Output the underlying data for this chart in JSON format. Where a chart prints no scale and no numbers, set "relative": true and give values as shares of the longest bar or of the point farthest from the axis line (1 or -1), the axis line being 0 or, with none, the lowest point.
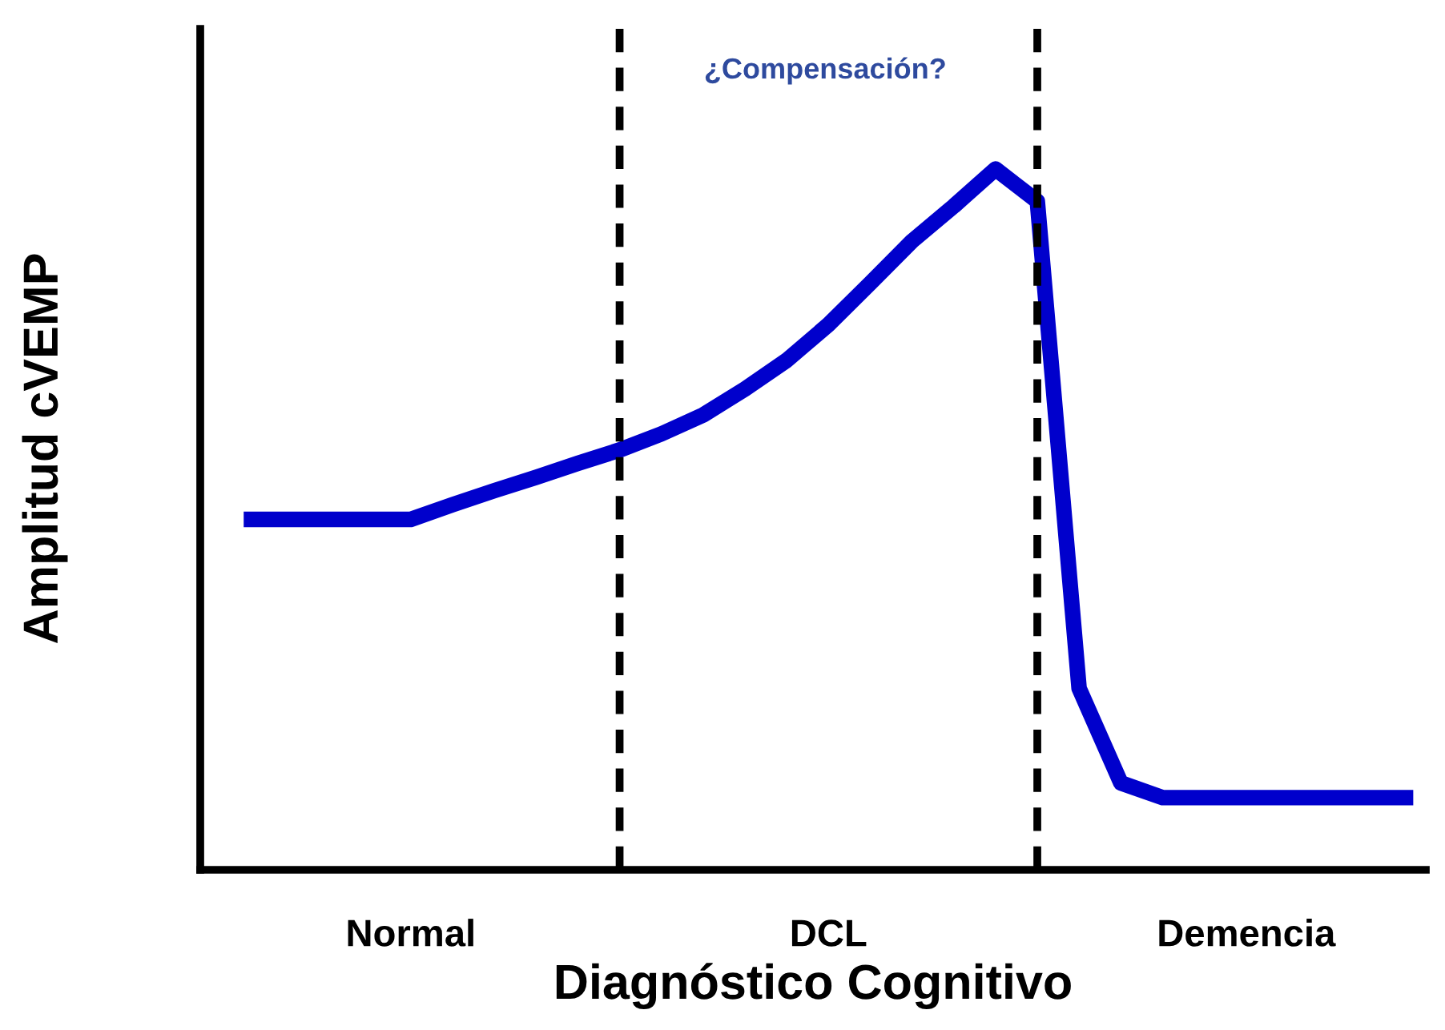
{
  "chart_data": {
    "type": "line",
    "relative": true,
    "xlabel": "Diagnóstico Cognitivo",
    "ylabel": "Amplitud cVEMP",
    "categories": [
      null,
      null,
      null,
      null,
      "Normal",
      null,
      null,
      null,
      null,
      null,
      null,
      null,
      null,
      null,
      "DCL",
      null,
      null,
      null,
      null,
      null,
      null,
      null,
      null,
      null,
      "Demencia",
      null,
      null,
      null,
      null
    ],
    "series": [
      {
        "color": "#0000cc",
        "values": [
          0.5,
          0.5,
          0.5,
          0.5,
          0.5,
          0.521,
          0.541,
          0.56,
          0.58,
          0.599,
          0.622,
          0.649,
          0.686,
          0.727,
          0.778,
          0.837,
          0.897,
          0.947,
          1.0,
          0.954,
          0.259,
          0.124,
          0.103,
          0.103,
          0.103,
          0.103,
          0.103,
          0.103,
          0.103
        ]
      }
    ],
    "annotations": [
      "¿Compensación?"
    ],
    "marker": "none",
    "line_style": "solid",
    "legend": false
  }
}
